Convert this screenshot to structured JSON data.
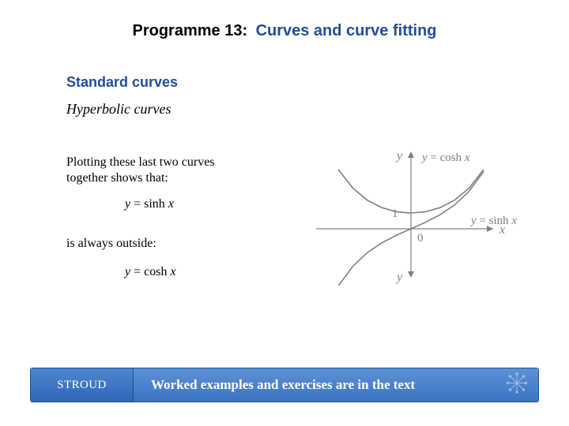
{
  "header": {
    "programme": "Programme 13:",
    "title": "Curves and curve fitting",
    "programme_color": "#000000",
    "title_color": "#1f4e9c",
    "font_family": "Arial",
    "font_size_pt": 15,
    "font_weight": "bold"
  },
  "section": {
    "text": "Standard curves",
    "color": "#1f4e9c",
    "font_family": "Arial",
    "font_size_pt": 14,
    "font_weight": "bold"
  },
  "subtitle": {
    "text": "Hyperbolic curves",
    "font_style": "italic",
    "font_size_pt": 14,
    "color": "#000000",
    "font_family": "Times New Roman"
  },
  "body": {
    "para1": "Plotting these last two curves together shows that:",
    "eq1": "y = sinh x",
    "para2": "is always outside:",
    "eq2": "y = cosh x",
    "font_family": "Times New Roman",
    "font_size_pt": 12,
    "italic_vars": true
  },
  "figure": {
    "type": "line",
    "background_color": "#ffffff",
    "axis_color": "#808080",
    "axis_width": 1.2,
    "xlim": [
      -2.4,
      2.4
    ],
    "ylim": [
      -3.7,
      4.5
    ],
    "xtick_labels": [
      "0"
    ],
    "ytick_labels": [
      "1"
    ],
    "series": [
      {
        "name": "cosh",
        "label": "y = cosh x",
        "color": "#808080",
        "line_width": 1.6,
        "points": [
          [
            -2.0,
            3.76
          ],
          [
            -1.6,
            2.58
          ],
          [
            -1.2,
            1.81
          ],
          [
            -0.8,
            1.34
          ],
          [
            -0.4,
            1.08
          ],
          [
            0.0,
            1.0
          ],
          [
            0.4,
            1.08
          ],
          [
            0.8,
            1.34
          ],
          [
            1.2,
            1.81
          ],
          [
            1.6,
            2.58
          ],
          [
            2.0,
            3.76
          ]
        ]
      },
      {
        "name": "sinh",
        "label": "y = sinh x",
        "color": "#808080",
        "line_width": 1.6,
        "points": [
          [
            -2.0,
            -3.63
          ],
          [
            -1.6,
            -2.38
          ],
          [
            -1.2,
            -1.51
          ],
          [
            -0.8,
            -0.89
          ],
          [
            -0.4,
            -0.41
          ],
          [
            0.0,
            0.0
          ],
          [
            0.4,
            0.41
          ],
          [
            0.8,
            0.89
          ],
          [
            1.2,
            1.51
          ],
          [
            1.6,
            2.38
          ],
          [
            2.0,
            3.63
          ]
        ]
      }
    ],
    "axis_labels": {
      "x_label": "x",
      "y_label_top": "y",
      "y_label_bottom": "y",
      "label_color": "#808080",
      "label_font": "italic 15px Times",
      "cosh_label_pos": "top-right-of-y-axis",
      "sinh_label_pos": "right-of-axis"
    },
    "eq_label_color": "#808080",
    "eq_label_fontsize": 15
  },
  "footer": {
    "left_text": "STROUD",
    "right_text": "Worked examples and exercises are in the text",
    "bg_gradient_top": "#5e92d6",
    "bg_gradient_bottom": "#3b73c2",
    "left_bg_gradient_top": "#4f86cf",
    "left_bg_gradient_bottom": "#2f66b5",
    "border_color": "#1a4f9c",
    "text_color": "#ffffff",
    "left_font": "Georgia",
    "right_font": "Times New Roman",
    "right_font_weight": "bold",
    "right_font_size_pt": 13,
    "star_icon_color": "#cfe0f4"
  }
}
